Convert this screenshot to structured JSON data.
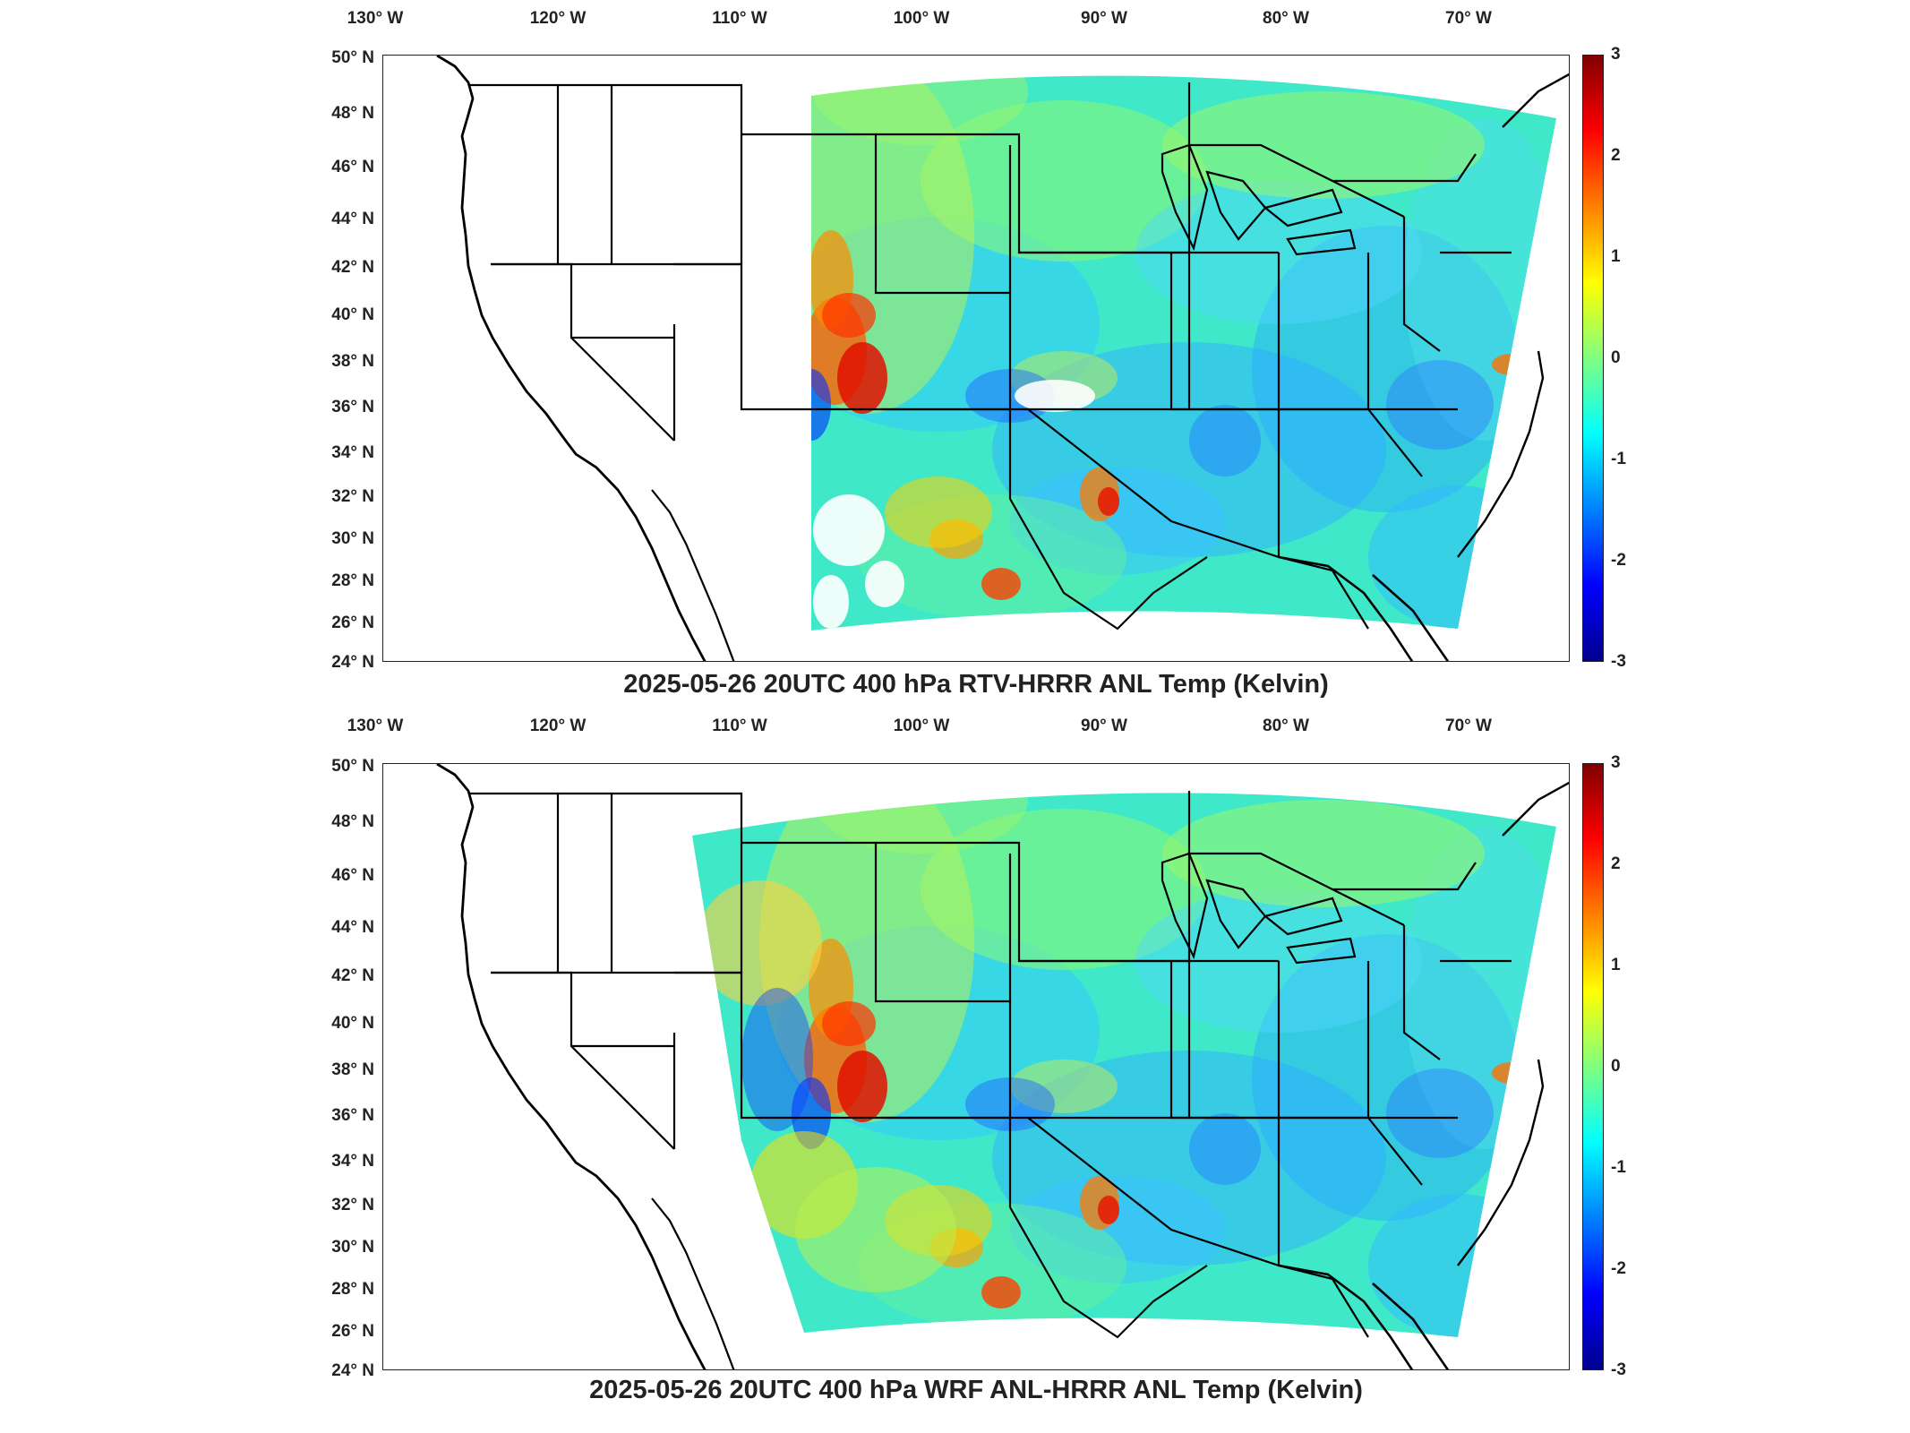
{
  "panels": [
    {
      "id": "top",
      "title": "2025-05-26 20UTC 400 hPa RTV-HRRR ANL Temp (Kelvin)",
      "lon_labels": [
        "130° W",
        "120° W",
        "110° W",
        "100° W",
        "90° W",
        "80° W",
        "70° W"
      ],
      "lat_labels": [
        "50° N",
        "48° N",
        "46° N",
        "44° N",
        "42° N",
        "40° N",
        "38° N",
        "36° N",
        "34° N",
        "32° N",
        "30° N",
        "28° N",
        "26° N",
        "24° N"
      ],
      "colorbar": {
        "ticks": [
          "3",
          "2",
          "1",
          "0",
          "-1",
          "-2",
          "-3"
        ],
        "min": -3,
        "max": 3
      },
      "warm_regions": [
        "southwest",
        "four-corners",
        "mississippi",
        "texas-coast",
        "atlantic"
      ],
      "has_missing_data": true
    },
    {
      "id": "bottom",
      "title": "2025-05-26 20UTC 400 hPa WRF ANL-HRRR ANL Temp (Kelvin)",
      "lon_labels": [
        "130° W",
        "120° W",
        "110° W",
        "100° W",
        "90° W",
        "80° W",
        "70° W"
      ],
      "lat_labels": [
        "50° N",
        "48° N",
        "46° N",
        "44° N",
        "42° N",
        "40° N",
        "38° N",
        "36° N",
        "34° N",
        "32° N",
        "30° N",
        "28° N",
        "26° N",
        "24° N"
      ],
      "colorbar": {
        "ticks": [
          "3",
          "2",
          "1",
          "0",
          "-1",
          "-2",
          "-3"
        ],
        "min": -3,
        "max": 3
      },
      "warm_regions": [
        "southwest",
        "four-corners",
        "mississippi",
        "texas-coast",
        "atlantic"
      ],
      "has_missing_data": false
    }
  ],
  "colors": {
    "field_base": "#3ee8c8",
    "warm": "#ff2a00",
    "cold": "#0033ff",
    "border": "#000000"
  }
}
